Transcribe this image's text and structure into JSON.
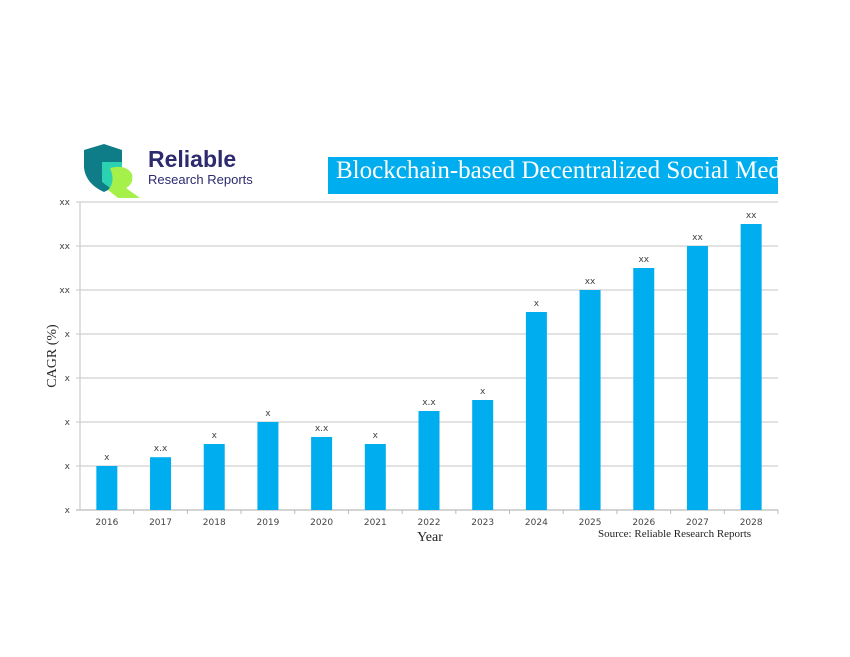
{
  "logo": {
    "name": "Reliable",
    "subtitle": "Research Reports"
  },
  "chart_data": {
    "type": "bar",
    "title": "Blockchain-based Decentralized Social Med",
    "xlabel": "Year",
    "ylabel": "CAGR (%)",
    "source": "Source: Reliable Research Reports",
    "categories": [
      "2016",
      "2017",
      "2018",
      "2019",
      "2020",
      "2021",
      "2022",
      "2023",
      "2024",
      "2025",
      "2026",
      "2027",
      "2028"
    ],
    "values": [
      1.0,
      1.2,
      1.5,
      2.0,
      1.66,
      1.5,
      2.25,
      2.5,
      4.5,
      5.0,
      5.5,
      6.0,
      6.5
    ],
    "data_labels": [
      "x",
      "x.x",
      "x",
      "x",
      "x.x",
      "x",
      "x.x",
      "x",
      "x",
      "xx",
      "xx",
      "xx",
      "xx"
    ],
    "y_tick_labels": [
      "x",
      "x",
      "x",
      "x",
      "x",
      "xx",
      "xx",
      "xx"
    ],
    "ylim": [
      0,
      7
    ],
    "grid": true,
    "bar_color": "#00aeef",
    "title_bg": "#00aeef"
  }
}
